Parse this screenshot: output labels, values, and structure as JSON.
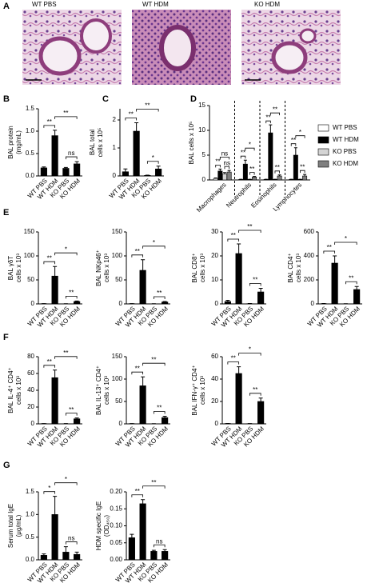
{
  "panel_labels": [
    "A",
    "B",
    "C",
    "D",
    "E",
    "F",
    "G"
  ],
  "images": [
    "WT PBS",
    "WT HDM",
    "KO HDM"
  ],
  "chart_data": [
    {
      "type": "bar",
      "ylabel": [
        "BAL protein",
        "(mg/mL)"
      ],
      "categories": [
        "WT PBS",
        "WT HDM",
        "KO PBS",
        "KO HDM"
      ],
      "values": [
        0.18,
        0.9,
        0.17,
        0.27
      ],
      "errors": [
        0.02,
        0.12,
        0.02,
        0.05
      ],
      "color": "#000000",
      "ylim": [
        0,
        1.5
      ],
      "yticks": [
        {
          "value": 0,
          "label": "0.0"
        },
        0.5,
        {
          "value": 1,
          "label": "1.0"
        },
        1.5
      ],
      "significance": [
        "**",
        "**",
        "ns"
      ]
    },
    {
      "type": "bar",
      "ylabel": [
        "BAL total",
        "cells x 10⁵"
      ],
      "categories": [
        "WT PBS",
        "WT HDM",
        "KO PBS",
        "KO HDM"
      ],
      "values": [
        0.15,
        1.6,
        0.02,
        0.25
      ],
      "errors": [
        0.1,
        0.3,
        0.01,
        0.1
      ],
      "color": "#000000",
      "ylim": [
        0,
        2.4
      ],
      "yticks": [
        0,
        1,
        2
      ],
      "significance": [
        "**",
        "**",
        "*"
      ]
    },
    {
      "type": "grouped_bar",
      "ylabel": [
        "BAL cells x 10⁵"
      ],
      "categories": [
        "Macrophages",
        "Neutrophils",
        "Eosinophils",
        "Lymphocytes"
      ],
      "ylim": [
        0,
        15
      ],
      "yticks": [
        0,
        5,
        10,
        15
      ],
      "legend": "right",
      "series": [
        {
          "name": "WT PBS",
          "color": "#ffffff",
          "values": [
            0.3,
            0.1,
            0.1,
            0.1
          ],
          "errors": [
            0.1,
            0.05,
            0.05,
            0.05
          ]
        },
        {
          "name": "WT HDM",
          "color": "#000000",
          "values": [
            1.8,
            3.2,
            9.5,
            5.0
          ],
          "errors": [
            0.4,
            0.8,
            1.6,
            1.5
          ]
        },
        {
          "name": "KO PBS",
          "color": "#d4d4d4",
          "values": [
            1.2,
            0.1,
            0.1,
            0.1
          ],
          "errors": [
            0.3,
            0.05,
            0.05,
            0.05
          ]
        },
        {
          "name": "KO HDM",
          "color": "#7f7f7f",
          "values": [
            1.6,
            0.6,
            0.8,
            0.8
          ],
          "errors": [
            0.3,
            0.1,
            0.2,
            0.3
          ]
        }
      ],
      "significance": [
        [
          "**",
          "ns",
          "ns"
        ],
        [
          "**",
          "*",
          "**"
        ],
        [
          "**",
          "**",
          "**"
        ],
        [
          "**",
          "*",
          "**"
        ]
      ]
    },
    {
      "type": "bar",
      "ylabel": [
        "BAL γδT",
        "cells x 10³"
      ],
      "categories": [
        "WT PBS",
        "WT HDM",
        "KO PBS",
        "KO HDM"
      ],
      "values": [
        0.5,
        58,
        0.3,
        5
      ],
      "errors": [
        0.2,
        20,
        0.1,
        1
      ],
      "color": "#000000",
      "ylim": [
        0,
        150
      ],
      "yticks": [
        0,
        50,
        100,
        150
      ],
      "significance": [
        "**",
        "*",
        "**"
      ]
    },
    {
      "type": "bar",
      "ylabel": [
        "BAL NKp46⁺",
        "cells x 10³"
      ],
      "categories": [
        "WT PBS",
        "WT HDM",
        "KO PBS",
        "KO HDM"
      ],
      "values": [
        0.5,
        70,
        0.3,
        4
      ],
      "errors": [
        0.2,
        22,
        0.1,
        1
      ],
      "color": "#000000",
      "ylim": [
        0,
        150
      ],
      "yticks": [
        0,
        50,
        100,
        150
      ],
      "significance": [
        "**",
        "*",
        "**"
      ]
    },
    {
      "type": "bar",
      "ylabel": [
        "BAL CD8⁺",
        "cells x 10³"
      ],
      "categories": [
        "WT PBS",
        "WT HDM",
        "KO PBS",
        "KO HDM"
      ],
      "values": [
        1,
        21,
        0.1,
        5
      ],
      "errors": [
        0.5,
        4,
        0.05,
        1.5
      ],
      "color": "#000000",
      "ylim": [
        0,
        30
      ],
      "yticks": [
        0,
        10,
        20,
        30
      ],
      "significance": [
        "**",
        "**",
        "**"
      ]
    },
    {
      "type": "bar",
      "ylabel": [
        "BAL CD4⁺",
        "cells x 10³"
      ],
      "categories": [
        "WT PBS",
        "WT HDM",
        "KO PBS",
        "KO HDM"
      ],
      "values": [
        2,
        340,
        1,
        120
      ],
      "errors": [
        1,
        60,
        0.5,
        25
      ],
      "color": "#000000",
      "ylim": [
        0,
        600
      ],
      "yticks": [
        0,
        200,
        400,
        600
      ],
      "significance": [
        "**",
        "*",
        "**"
      ]
    },
    {
      "type": "bar",
      "ylabel": [
        "BAL IL-4⁺ CD4⁺",
        "cells x 10³"
      ],
      "categories": [
        "WT PBS",
        "WT HDM",
        "KO PBS",
        "KO HDM"
      ],
      "values": [
        0.3,
        55,
        0.2,
        6
      ],
      "errors": [
        0.1,
        9,
        0.1,
        1
      ],
      "color": "#000000",
      "ylim": [
        0,
        80
      ],
      "yticks": [
        0,
        20,
        40,
        60,
        80
      ],
      "significance": [
        "**",
        "**",
        "**"
      ]
    },
    {
      "type": "bar",
      "ylabel": [
        "BAL IL-13⁺ CD4⁺",
        "cells x 10³"
      ],
      "categories": [
        "WT PBS",
        "WT HDM",
        "KO PBS",
        "KO HDM"
      ],
      "values": [
        0.5,
        85,
        0.3,
        14
      ],
      "errors": [
        0.2,
        20,
        0.1,
        3
      ],
      "color": "#000000",
      "ylim": [
        0,
        150
      ],
      "yticks": [
        0,
        50,
        100,
        150
      ],
      "significance": [
        "**",
        "**",
        "**"
      ]
    },
    {
      "type": "bar",
      "ylabel": [
        "BAL IFN-γ⁺ CD4⁺",
        "cells x 10³"
      ],
      "categories": [
        "WT PBS",
        "WT HDM",
        "KO PBS",
        "KO HDM"
      ],
      "values": [
        0.3,
        45,
        0.2,
        20
      ],
      "errors": [
        0.1,
        6,
        0.1,
        3
      ],
      "color": "#000000",
      "ylim": [
        0,
        60
      ],
      "yticks": [
        0,
        20,
        40,
        60
      ],
      "significance": [
        "**",
        "*",
        "**"
      ]
    },
    {
      "type": "bar",
      "ylabel": [
        "Serum total IgE",
        "(μg/mL)"
      ],
      "categories": [
        "WT PBS",
        "WT HDM",
        "KO PBS",
        "KO HDM"
      ],
      "values": [
        0.1,
        1.0,
        0.17,
        0.12
      ],
      "errors": [
        0.03,
        0.4,
        0.12,
        0.05
      ],
      "color": "#000000",
      "ylim": [
        0,
        1.5
      ],
      "yticks": [
        {
          "value": 0,
          "label": "0.0"
        },
        0.5,
        {
          "value": 1,
          "label": "1.0"
        },
        1.5
      ],
      "significance": [
        "*",
        "*",
        "ns"
      ]
    },
    {
      "type": "bar",
      "ylabel": [
        "HDM specific IgE",
        "(OD₄₅₀)"
      ],
      "categories": [
        "WT PBS",
        "WT HDM",
        "KO PBS",
        "KO HDM"
      ],
      "values": [
        0.065,
        0.165,
        0.025,
        0.025
      ],
      "errors": [
        0.01,
        0.012,
        0.003,
        0.005
      ],
      "color": "#000000",
      "ylim": [
        0,
        0.2
      ],
      "yticks": [
        {
          "value": 0,
          "label": "0.00"
        },
        0.05,
        {
          "value": 0.1,
          "label": "0.10"
        },
        0.15,
        {
          "value": 0.2,
          "label": "0.20"
        }
      ],
      "significance": [
        "**",
        "**",
        "ns"
      ]
    }
  ]
}
